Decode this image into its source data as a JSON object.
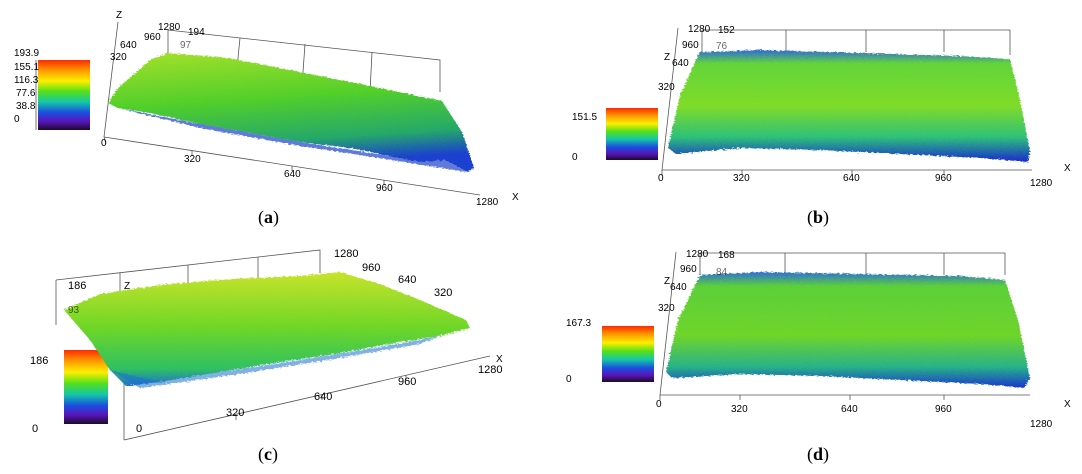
{
  "panels": [
    {
      "id": "a",
      "caption_open": "(",
      "caption_letter": "a",
      "caption_close": ")",
      "colorbar_ticks": [
        "193.9",
        "155.1",
        "116.3",
        "77.6",
        "38.8",
        "0"
      ],
      "z_max_label": "194",
      "z_mid_label": "97",
      "axis_z": "Z",
      "axis_x": "X",
      "x_ticks": [
        "0",
        "320",
        "640",
        "960",
        "1280"
      ],
      "y_ticks": [
        "320",
        "640",
        "960",
        "1280"
      ]
    },
    {
      "id": "b",
      "caption_open": "(",
      "caption_letter": "b",
      "caption_close": ")",
      "colorbar_ticks": [
        "151.5",
        "0"
      ],
      "z_max_label": "152",
      "z_mid_label": "76",
      "axis_z": "Z",
      "axis_x": "X",
      "x_ticks": [
        "0",
        "320",
        "640",
        "960",
        "1280"
      ],
      "y_ticks": [
        "320",
        "640",
        "960",
        "1280"
      ]
    },
    {
      "id": "c",
      "caption_open": "(",
      "caption_letter": "c",
      "caption_close": ")",
      "colorbar_ticks": [
        "186",
        "0"
      ],
      "z_max_label": "186",
      "z_mid_label": "93",
      "axis_z": "Z",
      "axis_x": "X",
      "x_ticks": [
        "0",
        "320",
        "640",
        "960",
        "1280"
      ],
      "y_ticks": [
        "1280",
        "960",
        "640",
        "320"
      ]
    },
    {
      "id": "d",
      "caption_open": "(",
      "caption_letter": "d",
      "caption_close": ")",
      "colorbar_ticks": [
        "167.3",
        "0"
      ],
      "z_max_label": "168",
      "z_mid_label": "84",
      "axis_z": "Z",
      "axis_x": "X",
      "x_ticks": [
        "0",
        "320",
        "640",
        "960",
        "1280"
      ],
      "y_ticks": [
        "320",
        "640",
        "960",
        "1280"
      ]
    }
  ],
  "colors": {
    "surface_top": "#8fdc1c",
    "surface_mid": "#3cc832",
    "surface_low": "#1a7fd2",
    "surface_edge": "#1b2fd4"
  }
}
